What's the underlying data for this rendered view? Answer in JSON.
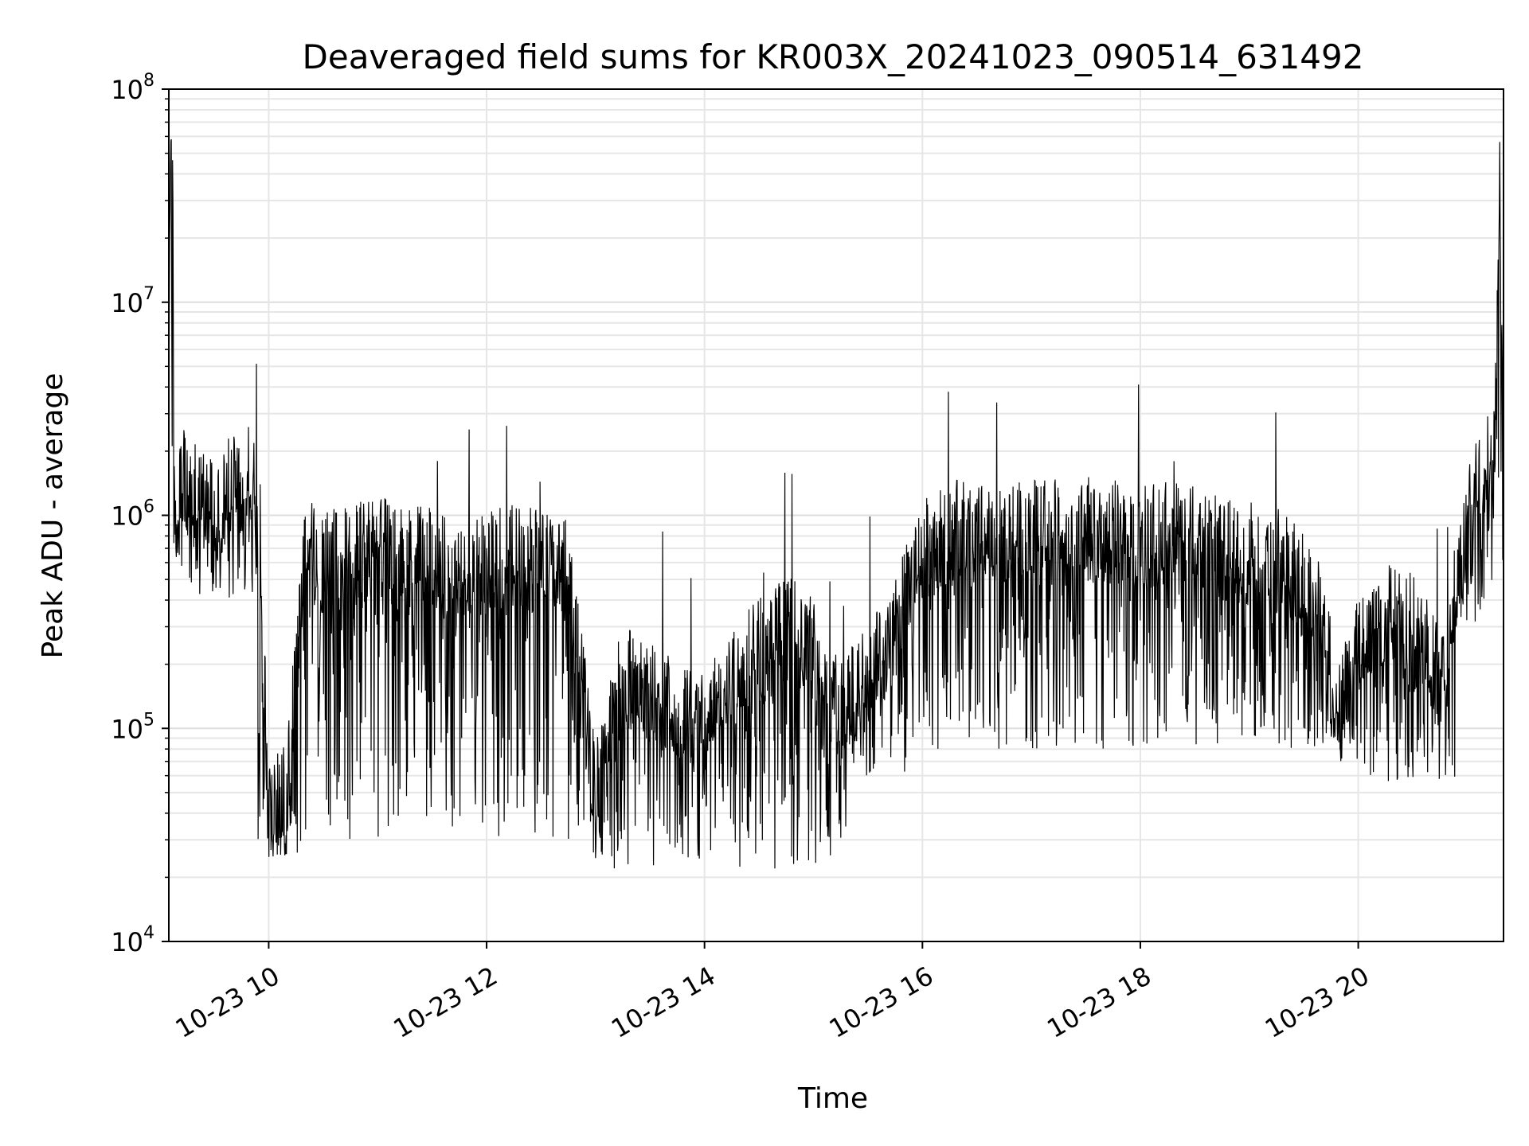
{
  "chart_data": {
    "type": "line",
    "title": "Deaveraged field sums for KR003X_20241023_090514_631492",
    "xlabel": "Time",
    "ylabel": "Peak ADU - average",
    "y_scale": "log",
    "ylim": [
      10000,
      100000000
    ],
    "xlim": [
      "2024-10-23 09:05",
      "2024-10-23 21:20"
    ],
    "grid": true,
    "line_color": "#000000",
    "y_ticks": [
      {
        "base": "10",
        "exp": "4",
        "value": 10000
      },
      {
        "base": "10",
        "exp": "5",
        "value": 100000
      },
      {
        "base": "10",
        "exp": "6",
        "value": 1000000
      },
      {
        "base": "10",
        "exp": "7",
        "value": 10000000
      },
      {
        "base": "10",
        "exp": "8",
        "value": 100000000
      }
    ],
    "x_ticks": [
      {
        "label": "10-23 10",
        "time": "2024-10-23 10:00"
      },
      {
        "label": "10-23 12",
        "time": "2024-10-23 12:00"
      },
      {
        "label": "10-23 14",
        "time": "2024-10-23 14:00"
      },
      {
        "label": "10-23 16",
        "time": "2024-10-23 16:00"
      },
      {
        "label": "10-23 18",
        "time": "2024-10-23 18:00"
      },
      {
        "label": "10-23 20",
        "time": "2024-10-23 20:00"
      }
    ],
    "series": [
      {
        "x": [
          "2024-10-23 09:05",
          "2024-10-23 09:06",
          "2024-10-23 09:07",
          "2024-10-23 09:08",
          "2024-10-23 09:10",
          "2024-10-23 09:12",
          "2024-10-23 09:15",
          "2024-10-23 09:20",
          "2024-10-23 09:25",
          "2024-10-23 09:30",
          "2024-10-23 09:35",
          "2024-10-23 09:40",
          "2024-10-23 09:45",
          "2024-10-23 09:50",
          "2024-10-23 09:55",
          "2024-10-23 10:00",
          "2024-10-23 10:10",
          "2024-10-23 10:20",
          "2024-10-23 10:30",
          "2024-10-23 10:45",
          "2024-10-23 11:00",
          "2024-10-23 11:15",
          "2024-10-23 11:30",
          "2024-10-23 11:45",
          "2024-10-23 12:00",
          "2024-10-23 12:15",
          "2024-10-23 12:30",
          "2024-10-23 12:45",
          "2024-10-23 13:00",
          "2024-10-23 13:15",
          "2024-10-23 13:30",
          "2024-10-23 13:45",
          "2024-10-23 14:00",
          "2024-10-23 14:15",
          "2024-10-23 14:30",
          "2024-10-23 14:45",
          "2024-10-23 15:00",
          "2024-10-23 15:15",
          "2024-10-23 15:30",
          "2024-10-23 15:45",
          "2024-10-23 16:00",
          "2024-10-23 16:20",
          "2024-10-23 16:40",
          "2024-10-23 17:00",
          "2024-10-23 17:20",
          "2024-10-23 17:40",
          "2024-10-23 18:00",
          "2024-10-23 18:20",
          "2024-10-23 18:40",
          "2024-10-23 19:00",
          "2024-10-23 19:20",
          "2024-10-23 19:40",
          "2024-10-23 19:50",
          "2024-10-23 20:00",
          "2024-10-23 20:15",
          "2024-10-23 20:30",
          "2024-10-23 20:45",
          "2024-10-23 20:55",
          "2024-10-23 21:05",
          "2024-10-23 21:15",
          "2024-10-23 21:18",
          "2024-10-23 21:20"
        ],
        "y": [
          2000000,
          70000000,
          60000000,
          1000000,
          900000,
          1500000,
          1000000,
          1100000,
          1000000,
          900000,
          1000000,
          1200000,
          1100000,
          1300000,
          900000,
          35000,
          40000,
          600000,
          500000,
          550000,
          600000,
          500000,
          550000,
          400000,
          500000,
          550000,
          500000,
          450000,
          40000,
          150000,
          120000,
          100000,
          90000,
          150000,
          200000,
          250000,
          200000,
          100000,
          150000,
          250000,
          600000,
          700000,
          650000,
          700000,
          700000,
          750000,
          650000,
          700000,
          600000,
          550000,
          500000,
          300000,
          100000,
          200000,
          300000,
          250000,
          150000,
          400000,
          1300000,
          1500000,
          30000000,
          2000000
        ]
      }
    ]
  }
}
